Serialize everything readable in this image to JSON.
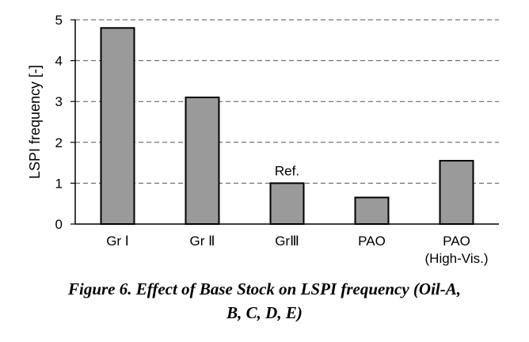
{
  "chart_data": {
    "type": "bar",
    "categories": [
      [
        "Gr Ⅰ"
      ],
      [
        "Gr Ⅱ"
      ],
      [
        "GrⅢ"
      ],
      [
        "PAO"
      ],
      [
        "PAO",
        "(High-Vis.)"
      ]
    ],
    "values": [
      4.8,
      3.1,
      1.0,
      0.65,
      1.55
    ],
    "ylabel": "LSPI frequency [-]",
    "xlabel": "",
    "ylim": [
      0,
      5
    ],
    "yticks": [
      "0",
      "1",
      "2",
      "3",
      "4",
      "5"
    ],
    "grid": "dashed-horizontal",
    "bar_color": "#9a9a9a",
    "annotations": [
      {
        "category_index": 2,
        "text": "Ref."
      }
    ]
  },
  "caption": {
    "line1": "Figure 6. Effect of Base Stock on LSPI frequency (Oil-A,",
    "line2": "B, C, D, E)"
  }
}
